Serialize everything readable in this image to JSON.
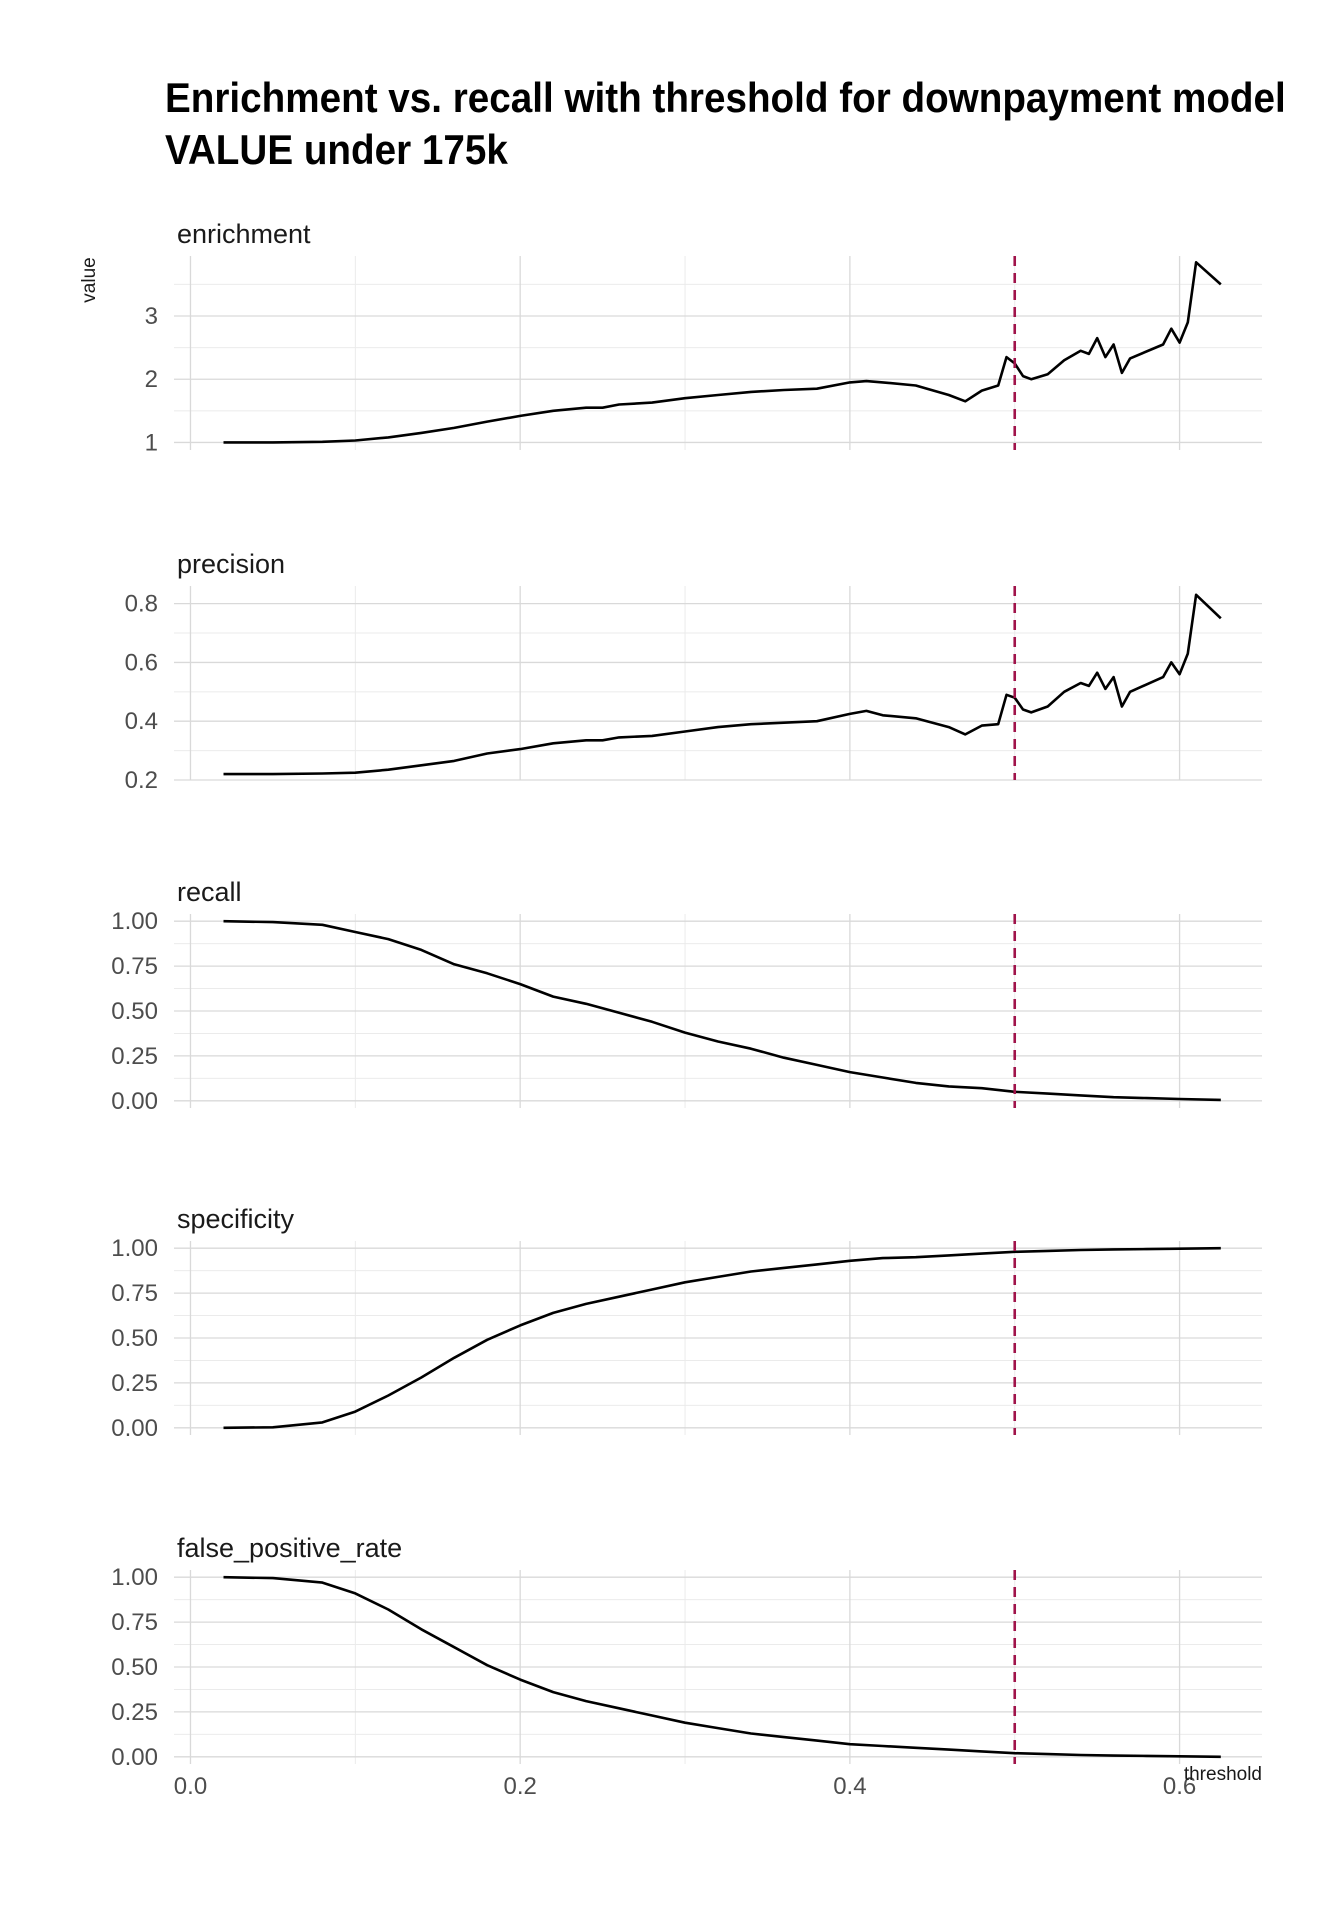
{
  "chart_data": {
    "type": "line",
    "title": "Enrichment vs. recall with threshold for downpayment model",
    "subtitle": "VALUE under 175k",
    "xlabel": "threshold",
    "ylabel": "value",
    "xlim": [
      -0.01,
      0.65
    ],
    "x_ticks": [
      0.0,
      0.2,
      0.4,
      0.6
    ],
    "x_tick_labels": [
      "0.0",
      "0.2",
      "0.4",
      "0.6"
    ],
    "grid": true,
    "legend": "none",
    "colors": {
      "series": "#000000",
      "reference": "#a0134a",
      "grid": "#d9d9d9"
    },
    "reference_line": {
      "x": 0.5,
      "style": "dashed"
    },
    "panels": [
      {
        "name": "enrichment",
        "ylim": [
          0.88,
          3.95
        ],
        "y_ticks": [
          1,
          2,
          3
        ],
        "y_tick_labels": [
          "1",
          "2",
          "3"
        ],
        "x": [
          0.02,
          0.05,
          0.08,
          0.1,
          0.12,
          0.14,
          0.16,
          0.18,
          0.2,
          0.22,
          0.24,
          0.25,
          0.26,
          0.28,
          0.3,
          0.32,
          0.34,
          0.36,
          0.38,
          0.4,
          0.41,
          0.42,
          0.44,
          0.46,
          0.47,
          0.48,
          0.49,
          0.495,
          0.5,
          0.505,
          0.51,
          0.52,
          0.53,
          0.54,
          0.545,
          0.55,
          0.555,
          0.56,
          0.565,
          0.57,
          0.59,
          0.595,
          0.6,
          0.605,
          0.61,
          0.625
        ],
        "values": [
          1.0,
          1.0,
          1.01,
          1.03,
          1.08,
          1.15,
          1.23,
          1.33,
          1.42,
          1.5,
          1.55,
          1.55,
          1.6,
          1.63,
          1.7,
          1.75,
          1.8,
          1.83,
          1.85,
          1.95,
          1.97,
          1.95,
          1.9,
          1.75,
          1.65,
          1.82,
          1.9,
          2.35,
          2.25,
          2.05,
          2.0,
          2.08,
          2.3,
          2.45,
          2.4,
          2.65,
          2.35,
          2.55,
          2.1,
          2.33,
          2.55,
          2.8,
          2.58,
          2.9,
          3.85,
          3.5
        ]
      },
      {
        "name": "precision",
        "ylim": [
          0.2,
          0.86
        ],
        "y_ticks": [
          0.2,
          0.4,
          0.6,
          0.8
        ],
        "y_tick_labels": [
          "0.2",
          "0.4",
          "0.6",
          "0.8"
        ],
        "x": [
          0.02,
          0.05,
          0.08,
          0.1,
          0.12,
          0.14,
          0.16,
          0.18,
          0.2,
          0.22,
          0.24,
          0.25,
          0.26,
          0.28,
          0.3,
          0.32,
          0.34,
          0.36,
          0.38,
          0.4,
          0.41,
          0.42,
          0.44,
          0.46,
          0.47,
          0.48,
          0.49,
          0.495,
          0.5,
          0.505,
          0.51,
          0.52,
          0.53,
          0.54,
          0.545,
          0.55,
          0.555,
          0.56,
          0.565,
          0.57,
          0.59,
          0.595,
          0.6,
          0.605,
          0.61,
          0.625
        ],
        "values": [
          0.22,
          0.22,
          0.222,
          0.225,
          0.235,
          0.25,
          0.265,
          0.29,
          0.305,
          0.325,
          0.335,
          0.335,
          0.345,
          0.35,
          0.365,
          0.38,
          0.39,
          0.395,
          0.4,
          0.425,
          0.435,
          0.42,
          0.41,
          0.38,
          0.355,
          0.385,
          0.39,
          0.49,
          0.48,
          0.44,
          0.43,
          0.45,
          0.5,
          0.53,
          0.52,
          0.565,
          0.51,
          0.55,
          0.45,
          0.5,
          0.55,
          0.6,
          0.56,
          0.63,
          0.83,
          0.75
        ]
      },
      {
        "name": "recall",
        "ylim": [
          -0.04,
          1.04
        ],
        "y_ticks": [
          0.0,
          0.25,
          0.5,
          0.75,
          1.0
        ],
        "y_tick_labels": [
          "0.00",
          "0.25",
          "0.50",
          "0.75",
          "1.00"
        ],
        "x": [
          0.02,
          0.05,
          0.08,
          0.1,
          0.12,
          0.14,
          0.16,
          0.18,
          0.2,
          0.22,
          0.24,
          0.26,
          0.28,
          0.3,
          0.32,
          0.34,
          0.36,
          0.38,
          0.4,
          0.42,
          0.44,
          0.46,
          0.48,
          0.5,
          0.52,
          0.54,
          0.56,
          0.58,
          0.6,
          0.625
        ],
        "values": [
          1.0,
          0.995,
          0.98,
          0.94,
          0.9,
          0.84,
          0.76,
          0.71,
          0.65,
          0.58,
          0.54,
          0.49,
          0.44,
          0.38,
          0.33,
          0.29,
          0.24,
          0.2,
          0.16,
          0.13,
          0.1,
          0.08,
          0.07,
          0.05,
          0.04,
          0.03,
          0.02,
          0.015,
          0.01,
          0.005
        ]
      },
      {
        "name": "specificity",
        "ylim": [
          -0.04,
          1.04
        ],
        "y_ticks": [
          0.0,
          0.25,
          0.5,
          0.75,
          1.0
        ],
        "y_tick_labels": [
          "0.00",
          "0.25",
          "0.50",
          "0.75",
          "1.00"
        ],
        "x": [
          0.02,
          0.05,
          0.08,
          0.1,
          0.12,
          0.14,
          0.16,
          0.18,
          0.2,
          0.22,
          0.24,
          0.26,
          0.28,
          0.3,
          0.32,
          0.34,
          0.36,
          0.38,
          0.4,
          0.42,
          0.44,
          0.46,
          0.48,
          0.5,
          0.52,
          0.54,
          0.56,
          0.58,
          0.6,
          0.625
        ],
        "values": [
          0.0,
          0.003,
          0.03,
          0.09,
          0.18,
          0.28,
          0.39,
          0.49,
          0.57,
          0.64,
          0.69,
          0.73,
          0.77,
          0.81,
          0.84,
          0.87,
          0.89,
          0.91,
          0.93,
          0.945,
          0.95,
          0.96,
          0.97,
          0.98,
          0.985,
          0.99,
          0.993,
          0.995,
          0.997,
          1.0
        ]
      },
      {
        "name": "false_positive_rate",
        "ylim": [
          -0.04,
          1.04
        ],
        "y_ticks": [
          0.0,
          0.25,
          0.5,
          0.75,
          1.0
        ],
        "y_tick_labels": [
          "0.00",
          "0.25",
          "0.50",
          "0.75",
          "1.00"
        ],
        "x": [
          0.02,
          0.05,
          0.08,
          0.1,
          0.12,
          0.14,
          0.16,
          0.18,
          0.2,
          0.22,
          0.24,
          0.26,
          0.28,
          0.3,
          0.32,
          0.34,
          0.36,
          0.38,
          0.4,
          0.42,
          0.44,
          0.46,
          0.48,
          0.5,
          0.52,
          0.54,
          0.56,
          0.58,
          0.6,
          0.625
        ],
        "values": [
          1.0,
          0.995,
          0.97,
          0.91,
          0.82,
          0.71,
          0.61,
          0.51,
          0.43,
          0.36,
          0.31,
          0.27,
          0.23,
          0.19,
          0.16,
          0.13,
          0.11,
          0.09,
          0.07,
          0.06,
          0.05,
          0.04,
          0.03,
          0.02,
          0.015,
          0.01,
          0.007,
          0.005,
          0.003,
          0.0
        ]
      }
    ]
  }
}
